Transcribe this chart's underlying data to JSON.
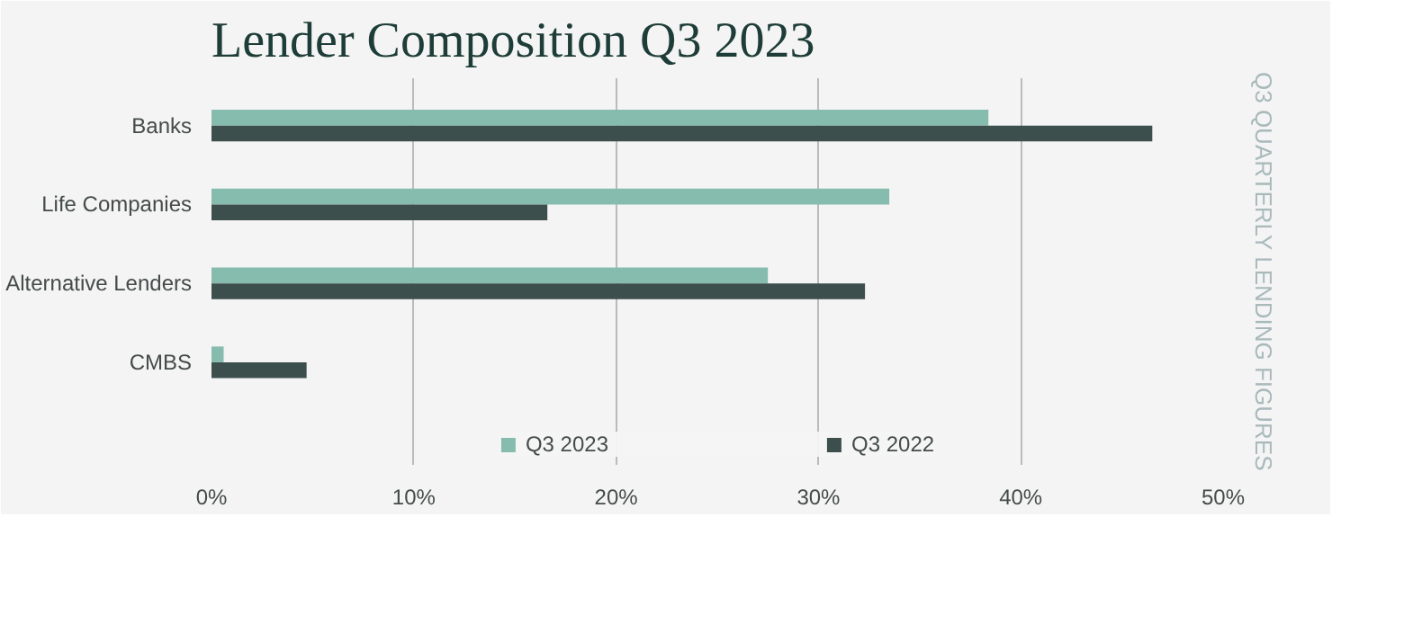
{
  "chart_data": {
    "type": "bar",
    "orientation": "horizontal",
    "title": "Lender Composition Q3 2023",
    "annotations": [
      "Q3 QUARTERLY LENDING FIGURES"
    ],
    "categories": [
      "Banks",
      "Life Companies",
      "Alternative Lenders",
      "CMBS"
    ],
    "series": [
      {
        "name": "Q3 2023",
        "color": "#86bcae",
        "values": [
          38.4,
          33.5,
          27.5,
          0.6
        ]
      },
      {
        "name": "Q3 2022",
        "color": "#3d4f4d",
        "values": [
          46.5,
          16.6,
          32.3,
          4.7
        ]
      }
    ],
    "xlim": [
      0,
      50
    ],
    "xticks": [
      {
        "value": 0,
        "label": "0%"
      },
      {
        "value": 10,
        "label": "10%"
      },
      {
        "value": 20,
        "label": "20%"
      },
      {
        "value": 30,
        "label": "30%"
      },
      {
        "value": 40,
        "label": "40%"
      },
      {
        "value": 50,
        "label": "50%"
      }
    ],
    "grid": "x",
    "legend": "bottom"
  }
}
